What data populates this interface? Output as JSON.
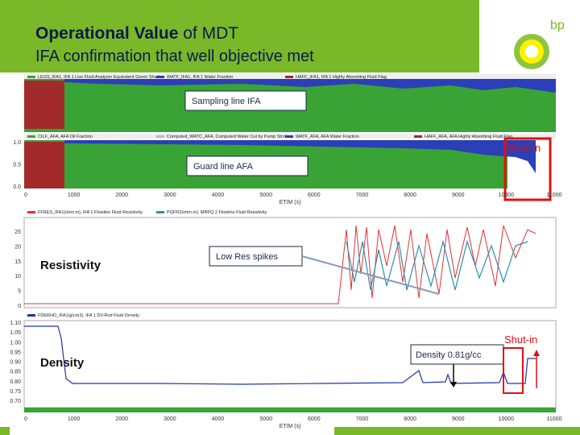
{
  "header": {
    "title_bold": "Operational Value",
    "title_rest": "of MDT",
    "subtitle": "IFA confirmation that well objective met",
    "logo": "bp"
  },
  "sampling_panel": {
    "legend": [
      "LEGS_IFA1, IFA 1 Live Fluid Analyzer Equivalent Green Shade",
      "WATF_IFA1, IFA 1 Water Fraction",
      "HAFF_IFA1, IFA 1 Highly Absorbing Fluid Flag"
    ],
    "callout": "Sampling line IFA"
  },
  "guard_panel": {
    "legend": [
      "CILF_AFA, AFA Oil Fraction",
      "Computed_WATC_AFA, Computed Water Cut by Pump Strokes",
      "WATF_AFA, AFA Water Fraction",
      "HAFF_AFA, AFA Highly Absorbing Fluid Flag"
    ],
    "callout": "Guard line AFA",
    "shut_in": "Shut-in",
    "yticks": [
      "1.0",
      "0.5",
      "0.0"
    ]
  },
  "x_axis": {
    "label": "ETIM (s)",
    "ticks": [
      "0",
      "1000",
      "2000",
      "3000",
      "4000",
      "5000",
      "6000",
      "7000",
      "8000",
      "9000",
      "10000",
      "11000"
    ]
  },
  "resistivity_panel": {
    "legend": [
      "FFRES_IFA1(ohm.m), IFA 1 Flowline Fluid Resistivity",
      "PQFR2(ohm.m), MRPQ 2 Flowline Fluid Resistivity"
    ],
    "label": "Resistivity",
    "callout": "Low Res spikes",
    "yticks": [
      "25",
      "20",
      "15",
      "10",
      "5",
      "0"
    ]
  },
  "density_panel": {
    "legend": [
      "FDERHO_IFA1(g/cm3), IFA 1 DV-Rod Fluid Density"
    ],
    "label": "Density",
    "callout": "Density 0.81g/cc",
    "shut_in": "Shut-in",
    "yticks": [
      "1.10",
      "1.05",
      "1.00",
      "0.95",
      "0.90",
      "0.85",
      "0.80",
      "0.75",
      "0.70"
    ]
  }
}
